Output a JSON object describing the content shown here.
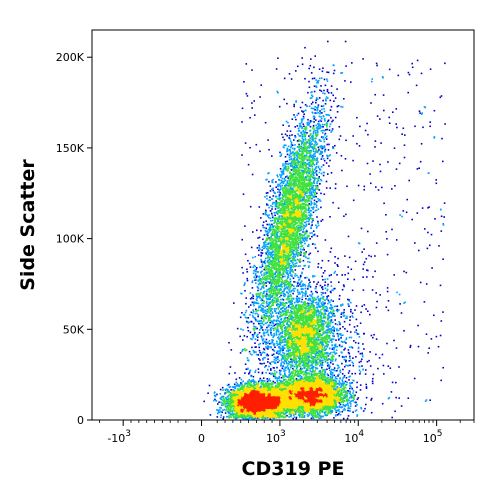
{
  "chart_data": {
    "type": "scatter",
    "plot_style": "density dot plot (pseudocolor: blue = low, green/yellow = medium, red = high)",
    "xlabel": "CD319 PE",
    "ylabel": "Side Scatter",
    "x_scale": "biexponential (logicle)",
    "y_scale": "linear",
    "ylim": [
      0,
      215000
    ],
    "x_ticks": [
      {
        "value": -1000,
        "label_base": "-10",
        "label_exp": "3"
      },
      {
        "value": 0,
        "label_base": "0",
        "label_exp": ""
      },
      {
        "value": 1000,
        "label_base": "10",
        "label_exp": "3"
      },
      {
        "value": 10000,
        "label_base": "10",
        "label_exp": "4"
      },
      {
        "value": 100000,
        "label_base": "10",
        "label_exp": "5"
      }
    ],
    "y_ticks": [
      {
        "value": 0,
        "label": "0"
      },
      {
        "value": 50000,
        "label": "50K"
      },
      {
        "value": 100000,
        "label": "100K"
      },
      {
        "value": 150000,
        "label": "150K"
      },
      {
        "value": 200000,
        "label": "200K"
      }
    ],
    "populations": [
      {
        "center_x": 700,
        "center_y": 10000,
        "peak_density": "high (red)"
      },
      {
        "center_x": 2300,
        "center_y": 14000,
        "peak_density": "high (red/orange)"
      },
      {
        "center_x": 2000,
        "center_y": 48000,
        "peak_density": "medium (green/yellow)"
      },
      {
        "center_x": 1300,
        "center_y": 110000,
        "peak_density": "medium (green/yellow)"
      }
    ],
    "grid": false,
    "legend": "none"
  },
  "colors": {
    "low": "#0000cc",
    "mid_low": "#00a0ff",
    "mid": "#40e040",
    "mid_high": "#ffe000",
    "high": "#ff2000"
  }
}
